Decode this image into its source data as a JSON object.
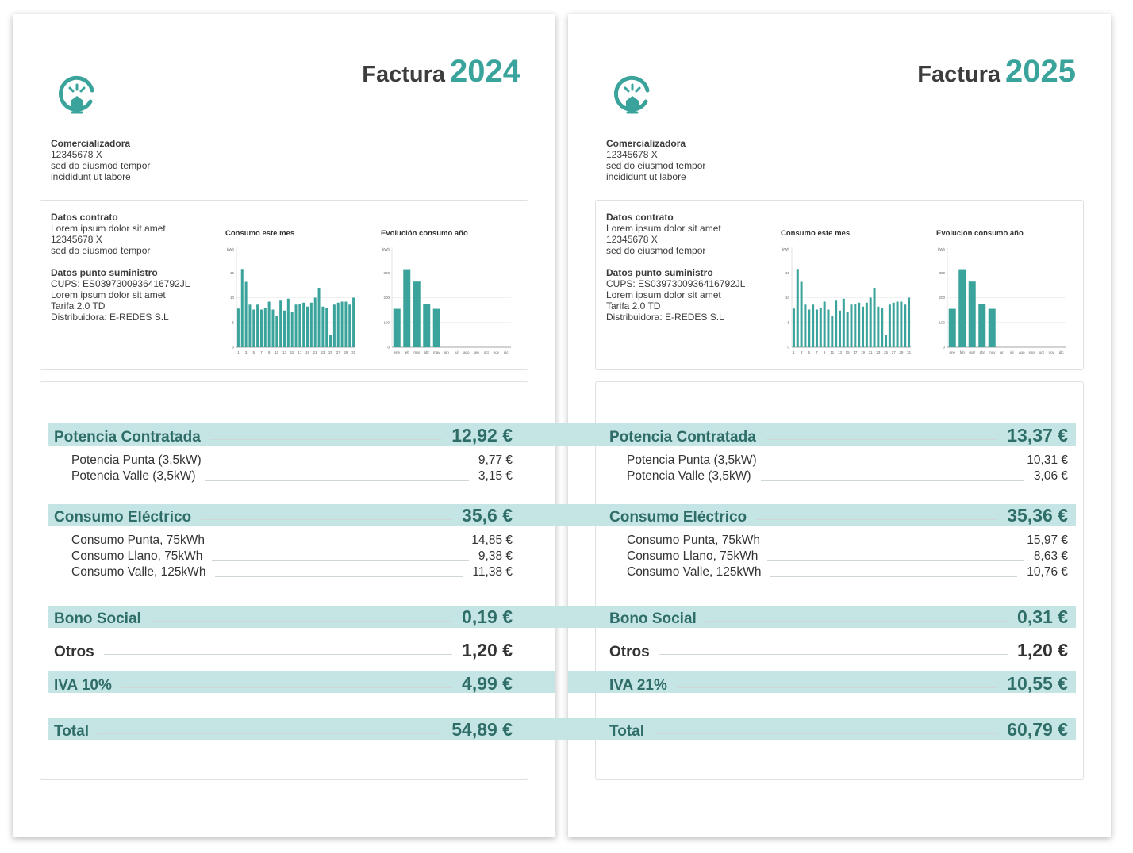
{
  "colors": {
    "accent": "#3aa39b",
    "band": "#c4e5e4",
    "section_text": "#2f6d68"
  },
  "invoices": [
    {
      "title_word": "Factura",
      "year": "2024",
      "logo_icon": "lightbulb-house-icon",
      "company": {
        "name": "Comercializadora",
        "id": "12345678 X",
        "line1": "sed do eiusmod tempor",
        "line2": "incididunt ut labore"
      },
      "contract": {
        "heading": "Datos contrato",
        "line1": "Lorem ipsum dolor sit amet",
        "line2": "12345678 X",
        "line3": "sed do eiusmod tempor"
      },
      "supply": {
        "heading": "Datos punto suministro",
        "cups": "CUPS: ES0397300936416792JL",
        "line1": "Lorem ipsum dolor sit amet",
        "tariff": "Tarifa 2.0 TD",
        "distributor": "Distribuidora: E-REDES S.L"
      },
      "sections": {
        "potencia": {
          "label": "Potencia Contratada",
          "value": "12,92 €",
          "items": [
            {
              "label": "Potencia Punta (3,5kW)",
              "value": "9,77 €"
            },
            {
              "label": "Potencia Valle (3,5kW)",
              "value": "3,15 €"
            }
          ]
        },
        "consumo": {
          "label": "Consumo Eléctrico",
          "value": "35,6 €",
          "items": [
            {
              "label": "Consumo Punta, 75kWh",
              "value": "14,85 €"
            },
            {
              "label": "Consumo Llano, 75kWh",
              "value": "9,38 €"
            },
            {
              "label": "Consumo Valle, 125kWh",
              "value": "11,38 €"
            }
          ]
        },
        "bono": {
          "label": "Bono Social",
          "value": "0,19 €"
        },
        "otros": {
          "label": "Otros",
          "value": "1,20 €"
        },
        "iva": {
          "label": "IVA 10%",
          "value": "4,99 €"
        },
        "total": {
          "label": "Total",
          "value": "54,89 €"
        }
      }
    },
    {
      "title_word": "Factura",
      "year": "2025",
      "logo_icon": "lightbulb-house-icon",
      "company": {
        "name": "Comercializadora",
        "id": "12345678 X",
        "line1": "sed do eiusmod tempor",
        "line2": "incididunt ut labore"
      },
      "contract": {
        "heading": "Datos contrato",
        "line1": "Lorem ipsum dolor sit amet",
        "line2": "12345678 X",
        "line3": "sed do eiusmod tempor"
      },
      "supply": {
        "heading": "Datos punto suministro",
        "cups": "CUPS: ES0397300936416792JL",
        "line1": "Lorem ipsum dolor sit amet",
        "tariff": "Tarifa 2.0 TD",
        "distributor": "Distribuidora: E-REDES S.L"
      },
      "sections": {
        "potencia": {
          "label": "Potencia Contratada",
          "value": "13,37 €",
          "items": [
            {
              "label": "Potencia Punta (3,5kW)",
              "value": "10,31 €"
            },
            {
              "label": "Potencia Valle (3,5kW)",
              "value": "3,06 €"
            }
          ]
        },
        "consumo": {
          "label": "Consumo Eléctrico",
          "value": "35,36 €",
          "items": [
            {
              "label": "Consumo Punta, 75kWh",
              "value": "15,97 €"
            },
            {
              "label": "Consumo Llano, 75kWh",
              "value": "8,63 €"
            },
            {
              "label": "Consumo Valle, 125kWh",
              "value": "10,76 €"
            }
          ]
        },
        "bono": {
          "label": "Bono Social",
          "value": "0,31 €"
        },
        "otros": {
          "label": "Otros",
          "value": "1,20 €"
        },
        "iva": {
          "label": "IVA 21%",
          "value": "10,55 €"
        },
        "total": {
          "label": "Total",
          "value": "60,79 €"
        }
      }
    }
  ],
  "chart_data": [
    {
      "type": "bar",
      "title": "Consumo este mes",
      "ylabel": "kWh",
      "ylim": [
        0,
        20
      ],
      "yticks": [
        "0",
        "5",
        "10",
        "15"
      ],
      "categories": [
        "1",
        "2",
        "3",
        "4",
        "5",
        "6",
        "7",
        "8",
        "9",
        "10",
        "11",
        "12",
        "13",
        "14",
        "15",
        "16",
        "17",
        "18",
        "19",
        "20",
        "21",
        "22",
        "23",
        "24",
        "25",
        "26",
        "27",
        "28",
        "29",
        "30",
        "31"
      ],
      "xtick_labels": [
        "1",
        "3",
        "5",
        "7",
        "9",
        "11",
        "13",
        "15",
        "17",
        "19",
        "21",
        "23",
        "25",
        "27",
        "29",
        "31"
      ],
      "values": [
        7.8,
        15.8,
        13.2,
        8.6,
        7.6,
        8.6,
        7.6,
        8,
        9.2,
        7.6,
        6.4,
        9.4,
        7.4,
        9.8,
        7.2,
        8.6,
        8.8,
        9,
        8.2,
        9,
        10,
        12,
        8.2,
        8,
        2.4,
        8.6,
        9,
        9.2,
        9.2,
        8.6,
        10
      ]
    },
    {
      "type": "bar",
      "title": "Evolución consumo año",
      "ylabel": "kWh",
      "ylim": [
        0,
        400
      ],
      "yticks": [
        "0",
        "100",
        "200",
        "300"
      ],
      "categories": [
        "ene",
        "feb",
        "mar",
        "abr",
        "may",
        "jun",
        "jul",
        "ago",
        "sep",
        "oct",
        "nov",
        "dic"
      ],
      "values": [
        155,
        315,
        265,
        175,
        155,
        0,
        0,
        0,
        0,
        0,
        0,
        0
      ]
    }
  ]
}
